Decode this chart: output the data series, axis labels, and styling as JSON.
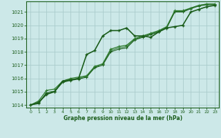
{
  "xlabel": "Graphe pression niveau de la mer (hPa)",
  "bg_color": "#cce8e8",
  "grid_color": "#aacccc",
  "line_color1": "#1a5c1a",
  "line_color2": "#2d7a2d",
  "xlim": [
    -0.5,
    23.5
  ],
  "ylim": [
    1013.8,
    1021.8
  ],
  "yticks": [
    1014,
    1015,
    1016,
    1017,
    1018,
    1019,
    1020,
    1021
  ],
  "xticks": [
    0,
    1,
    2,
    3,
    4,
    5,
    6,
    7,
    8,
    9,
    10,
    11,
    12,
    13,
    14,
    15,
    16,
    17,
    18,
    19,
    20,
    21,
    22,
    23
  ],
  "series": [
    [
      1014.0,
      1014.2,
      1014.8,
      1015.0,
      1015.8,
      1015.9,
      1016.0,
      1017.8,
      1018.1,
      1019.2,
      1019.6,
      1019.6,
      1019.8,
      1019.2,
      1019.2,
      1019.1,
      1019.5,
      1019.8,
      1019.9,
      1020.0,
      1021.0,
      1021.2,
      1021.4,
      1021.5
    ],
    [
      1014.0,
      1014.3,
      1015.1,
      1015.2,
      1015.8,
      1016.0,
      1016.1,
      1016.2,
      1016.9,
      1017.1,
      1018.2,
      1018.4,
      1018.5,
      1019.0,
      1019.2,
      1019.4,
      1019.6,
      1019.9,
      1021.1,
      1021.1,
      1021.3,
      1021.5,
      1021.6,
      1021.6
    ],
    [
      1014.0,
      1014.1,
      1014.9,
      1015.0,
      1015.7,
      1015.85,
      1015.95,
      1016.1,
      1016.8,
      1017.0,
      1018.0,
      1018.2,
      1018.3,
      1018.9,
      1019.1,
      1019.3,
      1019.5,
      1019.8,
      1021.0,
      1021.0,
      1021.25,
      1021.45,
      1021.55,
      1021.55
    ],
    [
      1014.0,
      1014.15,
      1014.95,
      1015.05,
      1015.75,
      1015.9,
      1016.0,
      1016.15,
      1016.85,
      1017.05,
      1018.1,
      1018.3,
      1018.4,
      1018.95,
      1019.15,
      1019.35,
      1019.55,
      1019.85,
      1021.05,
      1021.05,
      1021.3,
      1021.5,
      1021.6,
      1021.6
    ]
  ],
  "series_styles": [
    {
      "color": "#1a5c1a",
      "lw": 1.2,
      "marker": "+",
      "ms": 3.5,
      "mew": 1.0
    },
    {
      "color": "#2d7a2d",
      "lw": 0.9,
      "marker": "+",
      "ms": 3.0,
      "mew": 0.8
    },
    {
      "color": "#1a5c1a",
      "lw": 0.8,
      "marker": "+",
      "ms": 3.0,
      "mew": 0.7
    },
    {
      "color": "#2d7a2d",
      "lw": 0.7,
      "marker": "+",
      "ms": 2.5,
      "mew": 0.6
    }
  ]
}
